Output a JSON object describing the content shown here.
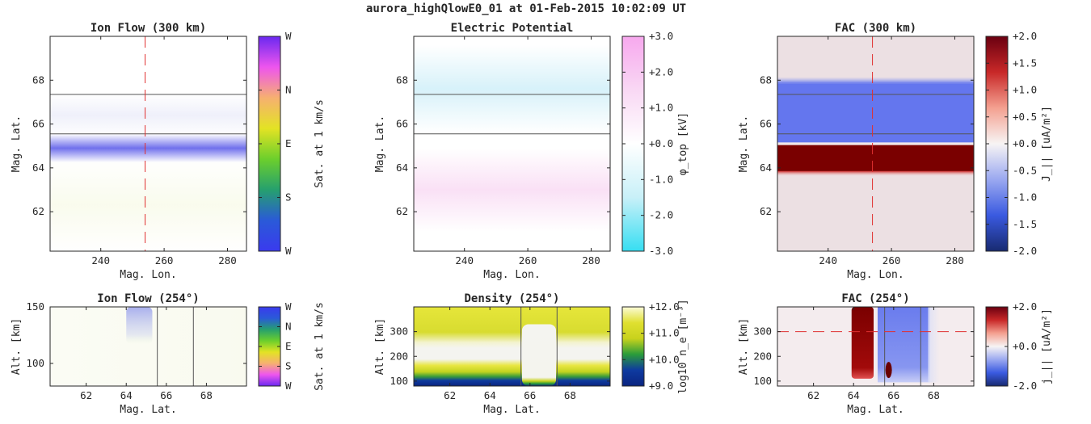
{
  "figure": {
    "title": "aurora_highQlowE0_01 at 01-Feb-2015 10:02:09 UT"
  },
  "chart_data": [
    {
      "type": "heatmap",
      "title": "Ion Flow (300 km)",
      "xlabel": "Mag. Lon.",
      "ylabel": "Mag. Lat.",
      "xlim": [
        224,
        286
      ],
      "ylim": [
        60.2,
        70
      ],
      "xticks": [
        {
          "v": 240,
          "label": "240"
        },
        {
          "v": 260,
          "label": "260"
        },
        {
          "v": 280,
          "label": "280"
        }
      ],
      "yticks": [
        {
          "v": 62,
          "label": "62"
        },
        {
          "v": 64,
          "label": "64"
        },
        {
          "v": 66,
          "label": "66"
        },
        {
          "v": 68,
          "label": "68"
        }
      ],
      "hlines": [
        65.55,
        67.35
      ],
      "vline": 254,
      "colorbar": {
        "label": "Sat. at 1 km/s",
        "ticks": [
          "W",
          "N",
          "E",
          "S",
          "W"
        ],
        "stops": [
          "#6a28f0",
          "#ee55ee",
          "#f6b070",
          "#e3e324",
          "#6ccf2c",
          "#26a06e",
          "#2a5ad8",
          "#3a3aee"
        ]
      },
      "bands": [
        {
          "lat_center": 64.9,
          "lat_halfwidth": 0.65,
          "color": "#6060ea",
          "strength": 0.9
        },
        {
          "lat_center": 66.4,
          "lat_halfwidth": 1.0,
          "color": "#b8bcea",
          "strength": 0.22
        },
        {
          "lat_center": 62.3,
          "lat_halfwidth": 2.2,
          "color": "#e8f0b8",
          "strength": 0.25
        }
      ]
    },
    {
      "type": "heatmap",
      "title": "Electric Potential",
      "xlabel": "Mag. Lon.",
      "ylabel": "Mag. Lat.",
      "xlim": [
        224,
        286
      ],
      "ylim": [
        60.2,
        70
      ],
      "xticks": [
        {
          "v": 240,
          "label": "240"
        },
        {
          "v": 260,
          "label": "260"
        },
        {
          "v": 280,
          "label": "280"
        }
      ],
      "yticks": [
        {
          "v": 62,
          "label": "62"
        },
        {
          "v": 64,
          "label": "64"
        },
        {
          "v": 66,
          "label": "66"
        },
        {
          "v": 68,
          "label": "68"
        }
      ],
      "hlines": [
        65.55,
        67.35
      ],
      "colorbar": {
        "label": "φ_top [kV]",
        "ticks": [
          "+3.0",
          "+2.0",
          "+1.0",
          "+0.0",
          "-1.0",
          "-2.0",
          "-3.0"
        ],
        "stops": [
          "#f7a8ee",
          "#f9d8f4",
          "#ffffff",
          "#c8f0f8",
          "#36def2"
        ]
      },
      "bands": [
        {
          "lat_center": 67.6,
          "lat_halfwidth": 2.0,
          "color": "#cdeef8",
          "strength": 0.8
        },
        {
          "lat_center": 63.0,
          "lat_halfwidth": 1.9,
          "color": "#f8d6f2",
          "strength": 0.75
        }
      ]
    },
    {
      "type": "heatmap",
      "title": "FAC (300 km)",
      "xlabel": "Mag. Lon.",
      "ylabel": "Mag. Lat.",
      "xlim": [
        224,
        286
      ],
      "ylim": [
        60.2,
        70
      ],
      "xticks": [
        {
          "v": 240,
          "label": "240"
        },
        {
          "v": 260,
          "label": "260"
        },
        {
          "v": 280,
          "label": "280"
        }
      ],
      "yticks": [
        {
          "v": 62,
          "label": "62"
        },
        {
          "v": 64,
          "label": "64"
        },
        {
          "v": 66,
          "label": "66"
        },
        {
          "v": 68,
          "label": "68"
        }
      ],
      "hlines": [
        65.55,
        67.35
      ],
      "vline": 254,
      "background": "#ece0e3",
      "colorbar": {
        "label": "J_|| [uA/m²]",
        "ticks": [
          "+2.0",
          "+1.5",
          "+1.0",
          "+0.5",
          "+0.0",
          "-0.5",
          "-1.0",
          "-1.5",
          "-2.0"
        ],
        "stops": [
          "#6a0010",
          "#c82828",
          "#f4a090",
          "#f7f4f4",
          "#9aa8f0",
          "#3a5ae0",
          "#182a70"
        ]
      },
      "bands": [
        {
          "lat_min": 65.15,
          "lat_max": 67.85,
          "color": "#6476ee",
          "strength": 1.0
        },
        {
          "lat_min": 63.85,
          "lat_max": 65.05,
          "color": "#7a0000",
          "strength": 1.0
        }
      ]
    },
    {
      "type": "heatmap",
      "title": "Ion Flow (254°)",
      "xlabel": "Mag. Lat.",
      "ylabel": "Alt. [km]",
      "xlim": [
        60.2,
        70
      ],
      "ylim": [
        80,
        150
      ],
      "xticks": [
        {
          "v": 62,
          "label": "62"
        },
        {
          "v": 64,
          "label": "64"
        },
        {
          "v": 66,
          "label": "66"
        },
        {
          "v": 68,
          "label": "68"
        }
      ],
      "yticks": [
        {
          "v": 100,
          "label": "100"
        },
        {
          "v": 150,
          "label": "150"
        }
      ],
      "vlines": [
        65.55,
        67.35
      ],
      "colorbar": {
        "label": "Sat. at 1 km/s",
        "ticks": [
          "W",
          "N",
          "E",
          "S",
          "W"
        ],
        "stops": [
          "#3a3aee",
          "#2a5ad8",
          "#26a06e",
          "#6ccf2c",
          "#e3e324",
          "#f6b070",
          "#ee55ee",
          "#6a28f0"
        ]
      }
    },
    {
      "type": "heatmap",
      "title": "Density (254°)",
      "xlabel": "Mag. Lat.",
      "ylabel": "Alt. [km]",
      "xlim": [
        60.2,
        70
      ],
      "ylim": [
        80,
        400
      ],
      "xticks": [
        {
          "v": 62,
          "label": "62"
        },
        {
          "v": 64,
          "label": "64"
        },
        {
          "v": 66,
          "label": "66"
        },
        {
          "v": 68,
          "label": "68"
        }
      ],
      "yticks": [
        {
          "v": 100,
          "label": "100"
        },
        {
          "v": 200,
          "label": "200"
        },
        {
          "v": 300,
          "label": "300"
        }
      ],
      "vlines": [
        65.55,
        67.35
      ],
      "colorbar": {
        "label": "log10 n_e [m⁻³]",
        "ticks": [
          "+12.0",
          "+11.0",
          "+10.0",
          "+9.0"
        ],
        "stops": [
          "#fbfbd8",
          "#e0e030",
          "#c8d21c",
          "#2a9c3a",
          "#0e3aa0",
          "#0a2480"
        ]
      }
    },
    {
      "type": "heatmap",
      "title": "FAC (254°)",
      "xlabel": "Mag. Lat.",
      "ylabel": "Alt. [km]",
      "xlim": [
        60.2,
        70
      ],
      "ylim": [
        80,
        400
      ],
      "xticks": [
        {
          "v": 62,
          "label": "62"
        },
        {
          "v": 64,
          "label": "64"
        },
        {
          "v": 66,
          "label": "66"
        },
        {
          "v": 68,
          "label": "68"
        }
      ],
      "yticks": [
        {
          "v": 100,
          "label": "100"
        },
        {
          "v": 200,
          "label": "200"
        },
        {
          "v": 300,
          "label": "300"
        }
      ],
      "vlines": [
        65.55,
        67.35
      ],
      "hline": 300,
      "background": "#f4ecee",
      "colorbar": {
        "label": "j_|| [uA/m²]",
        "ticks": [
          "+2.0",
          "+0.0",
          "-2.0"
        ],
        "stops": [
          "#6a0010",
          "#c82828",
          "#f4a090",
          "#f7f4f4",
          "#9aa8f0",
          "#3a5ae0",
          "#182a70"
        ]
      }
    }
  ]
}
